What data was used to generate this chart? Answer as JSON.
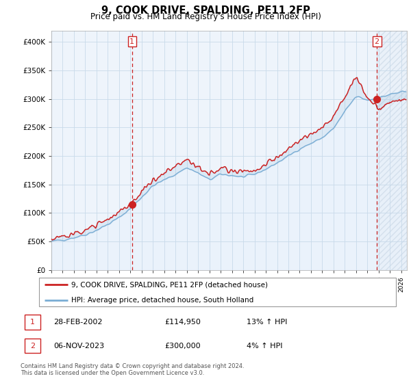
{
  "title": "9, COOK DRIVE, SPALDING, PE11 2FP",
  "subtitle": "Price paid vs. HM Land Registry's House Price Index (HPI)",
  "legend_entry1": "9, COOK DRIVE, SPALDING, PE11 2FP (detached house)",
  "legend_entry2": "HPI: Average price, detached house, South Holland",
  "table_row1": [
    "1",
    "28-FEB-2002",
    "£114,950",
    "13% ↑ HPI"
  ],
  "table_row2": [
    "2",
    "06-NOV-2023",
    "£300,000",
    "4% ↑ HPI"
  ],
  "footer": "Contains HM Land Registry data © Crown copyright and database right 2024.\nThis data is licensed under the Open Government Licence v3.0.",
  "hpi_color": "#7aadd4",
  "price_color": "#cc2222",
  "vline_color": "#cc2222",
  "fill_color": "#ddeeff",
  "ylim": [
    0,
    420000
  ],
  "yticks": [
    0,
    50000,
    100000,
    150000,
    200000,
    250000,
    300000,
    350000,
    400000
  ],
  "purchase1_x": 2002.15,
  "purchase1_y": 114950,
  "purchase2_x": 2023.84,
  "purchase2_y": 300000,
  "xmin": 1995.0,
  "xmax": 2026.5
}
